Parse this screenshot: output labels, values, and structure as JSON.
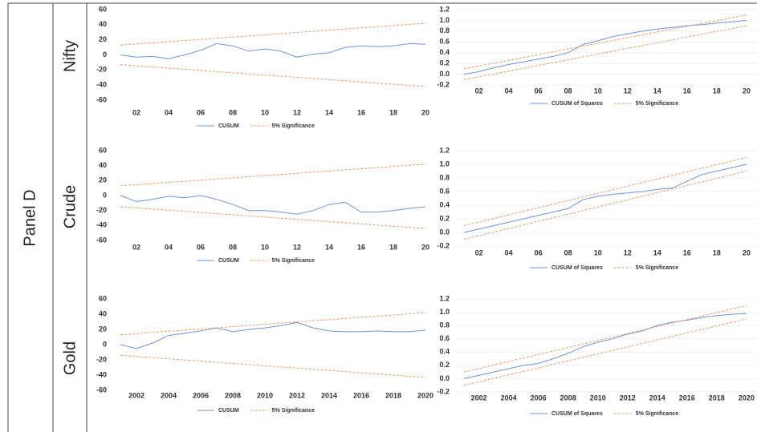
{
  "panel": "Panel D",
  "rows": [
    "Nifty",
    "Crude",
    "Gold"
  ],
  "chart_data": [
    {
      "type": "line",
      "xlim": [
        2000.5,
        2020.5
      ],
      "ylim": [
        -60,
        60
      ],
      "yticks": [
        -60,
        -40,
        -20,
        0,
        20,
        40,
        60
      ],
      "grid": false,
      "xticks": [
        {
          "value": 2002,
          "label": "02"
        },
        {
          "value": 2004,
          "label": "04"
        },
        {
          "value": 2006,
          "label": "06"
        },
        {
          "value": 2008,
          "label": "08"
        },
        {
          "value": 2010,
          "label": "10"
        },
        {
          "value": 2012,
          "label": "12"
        },
        {
          "value": 2014,
          "label": "14"
        },
        {
          "value": 2016,
          "label": "16"
        },
        {
          "value": 2018,
          "label": "18"
        },
        {
          "value": 2020,
          "label": "20"
        }
      ],
      "series": [
        {
          "name": "CUSUM",
          "color": "#7194d6",
          "x": [
            2001,
            2002,
            2003,
            2004,
            2005,
            2006,
            2007,
            2008,
            2009,
            2010,
            2011,
            2012,
            2013,
            2014,
            2015,
            2016,
            2017,
            2018,
            2019,
            2020
          ],
          "values": [
            0,
            -3,
            -2,
            -5,
            0,
            6,
            15,
            12,
            5,
            8,
            5,
            -3,
            1,
            3,
            10,
            12,
            11,
            12,
            15,
            14
          ]
        },
        {
          "name": "5% Significance",
          "color": "#f0996a",
          "x": [
            2001,
            2020
          ],
          "values": [
            13,
            42
          ],
          "lower": [
            -13,
            -42
          ]
        }
      ]
    },
    {
      "type": "line",
      "xlim": [
        2000.4,
        2021.9
      ],
      "ylim": [
        -0.2,
        1.2
      ],
      "yticks": [
        -0.2,
        {
          "value": 0,
          "label": "0.0"
        },
        0.2,
        0.4,
        0.6,
        0.8,
        {
          "value": 1,
          "label": "1.0"
        },
        1.2
      ],
      "grid": true,
      "xticks": [
        {
          "value": 2002,
          "label": "02"
        },
        {
          "value": 2004,
          "label": "04"
        },
        {
          "value": 2006,
          "label": "06"
        },
        {
          "value": 2008,
          "label": "08"
        },
        {
          "value": 2010,
          "label": "10"
        },
        {
          "value": 2012,
          "label": "12"
        },
        {
          "value": 2014,
          "label": "14"
        },
        {
          "value": 2016,
          "label": "16"
        },
        {
          "value": 2018,
          "label": "18"
        },
        {
          "value": 2020,
          "label": "20"
        }
      ],
      "series": [
        {
          "name": "CUSUM of Squares",
          "color": "#7194d6",
          "x": [
            2001,
            2002,
            2003,
            2004,
            2005,
            2006,
            2007,
            2008,
            2009,
            2010,
            2011,
            2012,
            2013,
            2014,
            2015,
            2016,
            2017,
            2018,
            2019,
            2020
          ],
          "values": [
            0,
            0.05,
            0.12,
            0.18,
            0.23,
            0.28,
            0.33,
            0.4,
            0.55,
            0.62,
            0.7,
            0.75,
            0.8,
            0.84,
            0.87,
            0.9,
            0.92,
            0.95,
            0.97,
            1.0
          ]
        },
        {
          "name": "5% Significance",
          "color": "#f0996a",
          "x": [
            2001,
            2020
          ],
          "values": [
            0.1,
            1.1
          ],
          "lower": [
            -0.1,
            0.9
          ]
        }
      ]
    },
    {
      "type": "line",
      "xlim": [
        2000.5,
        2020.5
      ],
      "ylim": [
        -60,
        60
      ],
      "yticks": [
        -60,
        -40,
        -20,
        0,
        20,
        40,
        60
      ],
      "grid": false,
      "xticks": [
        {
          "value": 2002,
          "label": "02"
        },
        {
          "value": 2004,
          "label": "04"
        },
        {
          "value": 2006,
          "label": "06"
        },
        {
          "value": 2008,
          "label": "08"
        },
        {
          "value": 2010,
          "label": "10"
        },
        {
          "value": 2012,
          "label": "12"
        },
        {
          "value": 2014,
          "label": "14"
        },
        {
          "value": 2016,
          "label": "16"
        },
        {
          "value": 2018,
          "label": "18"
        },
        {
          "value": 2020,
          "label": "20"
        }
      ],
      "series": [
        {
          "name": "CUSUM",
          "color": "#7194d6",
          "x": [
            2001,
            2002,
            2003,
            2004,
            2005,
            2006,
            2007,
            2008,
            2009,
            2010,
            2011,
            2012,
            2013,
            2014,
            2015,
            2016,
            2017,
            2018,
            2019,
            2020
          ],
          "values": [
            0,
            -8,
            -5,
            -1,
            -3,
            0,
            -5,
            -12,
            -20,
            -20,
            -22,
            -25,
            -20,
            -12,
            -9,
            -22,
            -22,
            -20,
            -17,
            -15
          ]
        },
        {
          "name": "5% Significance",
          "color": "#f0996a",
          "x": [
            2001,
            2020
          ],
          "values": [
            13,
            42
          ],
          "lower": [
            -15,
            -44
          ]
        }
      ]
    },
    {
      "type": "line",
      "xlim": [
        2000.4,
        2021.9
      ],
      "ylim": [
        -0.2,
        1.2
      ],
      "yticks": [
        -0.2,
        {
          "value": 0,
          "label": "0.0"
        },
        0.2,
        0.4,
        0.6,
        0.8,
        {
          "value": 1,
          "label": "1.0"
        },
        1.2
      ],
      "grid": true,
      "xticks": [
        {
          "value": 2002,
          "label": "02"
        },
        {
          "value": 2004,
          "label": "04"
        },
        {
          "value": 2006,
          "label": "06"
        },
        {
          "value": 2008,
          "label": "08"
        },
        {
          "value": 2010,
          "label": "10"
        },
        {
          "value": 2012,
          "label": "12"
        },
        {
          "value": 2014,
          "label": "14"
        },
        {
          "value": 2016,
          "label": "16"
        },
        {
          "value": 2018,
          "label": "18"
        },
        {
          "value": 2020,
          "label": "20"
        }
      ],
      "series": [
        {
          "name": "CUSUM of Squares",
          "color": "#7194d6",
          "x": [
            2001,
            2002,
            2003,
            2004,
            2005,
            2006,
            2007,
            2008,
            2009,
            2010,
            2011,
            2012,
            2013,
            2014,
            2015,
            2016,
            2017,
            2018,
            2019,
            2020
          ],
          "values": [
            0,
            0.05,
            0.1,
            0.15,
            0.2,
            0.25,
            0.3,
            0.35,
            0.48,
            0.53,
            0.56,
            0.58,
            0.6,
            0.63,
            0.65,
            0.75,
            0.85,
            0.9,
            0.95,
            1.0
          ]
        },
        {
          "name": "5% Significance",
          "color": "#f0996a",
          "x": [
            2001,
            2020
          ],
          "values": [
            0.1,
            1.1
          ],
          "lower": [
            -0.1,
            0.9
          ]
        }
      ]
    },
    {
      "type": "line",
      "xlim": [
        2000.5,
        2020.5
      ],
      "ylim": [
        -60,
        60
      ],
      "yticks": [
        -60,
        -40,
        -20,
        0,
        20,
        40,
        60
      ],
      "grid": false,
      "xticks": [
        2002,
        2004,
        2006,
        2008,
        2010,
        2012,
        2014,
        2016,
        2018,
        2020
      ],
      "series": [
        {
          "name": "CUSUM",
          "color": "#7194d6",
          "x": [
            2001,
            2002,
            2003,
            2004,
            2005,
            2006,
            2007,
            2008,
            2009,
            2010,
            2011,
            2012,
            2013,
            2014,
            2015,
            2016,
            2017,
            2018,
            2019,
            2020
          ],
          "values": [
            0,
            -5,
            2,
            12,
            15,
            18,
            22,
            17,
            20,
            22,
            25,
            29,
            22,
            18,
            17,
            17,
            18,
            17,
            17,
            19
          ]
        },
        {
          "name": "5% Significance",
          "color": "#f0996a",
          "x": [
            2001,
            2020
          ],
          "values": [
            13,
            42
          ],
          "lower": [
            -14,
            -43
          ]
        }
      ]
    },
    {
      "type": "line",
      "xlim": [
        2000.4,
        2021.9
      ],
      "ylim": [
        -0.2,
        1.2
      ],
      "yticks": [
        -0.2,
        {
          "value": 0,
          "label": "0.0"
        },
        0.2,
        0.4,
        0.6,
        0.8,
        {
          "value": 1,
          "label": "1.0"
        },
        1.2
      ],
      "grid": true,
      "xticks": [
        2002,
        2004,
        2006,
        2008,
        2010,
        2012,
        2014,
        2016,
        2018,
        2020
      ],
      "series": [
        {
          "name": "CUSUM of Squares",
          "color": "#7194d6",
          "x": [
            2001,
            2002,
            2003,
            2004,
            2005,
            2006,
            2007,
            2008,
            2009,
            2010,
            2011,
            2012,
            2013,
            2014,
            2015,
            2016,
            2017,
            2018,
            2019,
            2020
          ],
          "values": [
            0,
            0.05,
            0.1,
            0.15,
            0.2,
            0.23,
            0.3,
            0.38,
            0.48,
            0.55,
            0.6,
            0.67,
            0.72,
            0.8,
            0.85,
            0.88,
            0.92,
            0.95,
            0.97,
            0.98
          ]
        },
        {
          "name": "5% Significance",
          "color": "#f0996a",
          "x": [
            2001,
            2020
          ],
          "values": [
            0.1,
            1.1
          ],
          "lower": [
            -0.1,
            0.9
          ]
        }
      ]
    }
  ]
}
